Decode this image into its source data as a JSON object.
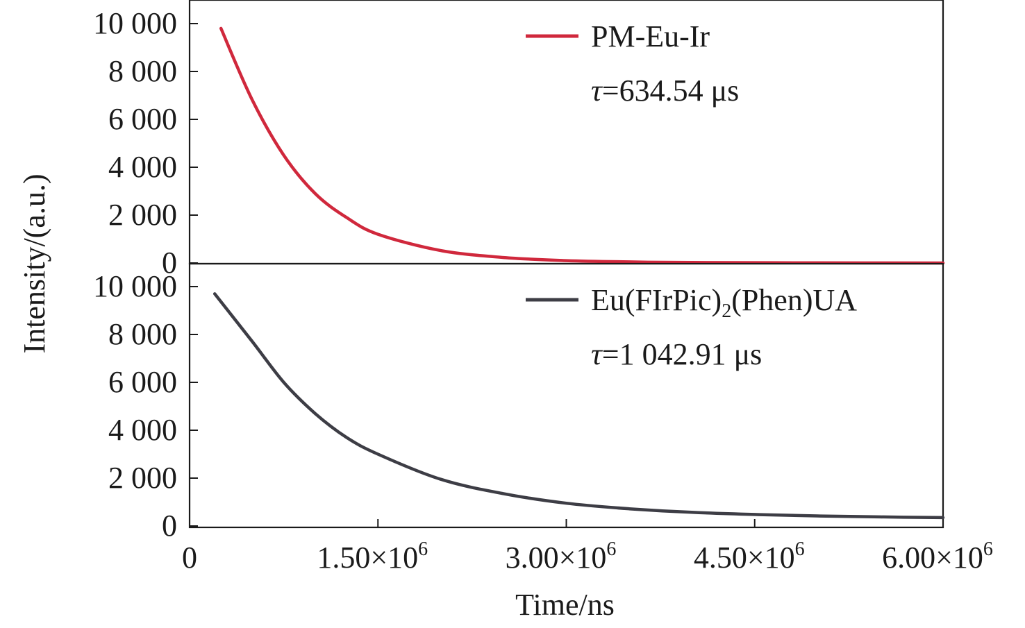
{
  "chart_data": {
    "type": "line",
    "layout": "stacked-panels-shared-x",
    "x": {
      "label": "Time/ns",
      "range": [
        0,
        6000000
      ],
      "ticks": [
        0,
        1500000,
        3000000,
        4500000,
        6000000
      ],
      "tick_labels": [
        {
          "base": "0",
          "exp": ""
        },
        {
          "base": "1.50×10",
          "exp": "6"
        },
        {
          "base": "3.00×10",
          "exp": "6"
        },
        {
          "base": "4.50×10",
          "exp": "6"
        },
        {
          "base": "6.00×10",
          "exp": "6"
        }
      ]
    },
    "ylabel": "Intensity/(a.u.)",
    "panels": [
      {
        "name": "top-panel",
        "ylim": [
          0,
          10800
        ],
        "yticks": [
          0,
          2000,
          4000,
          6000,
          8000,
          10000
        ],
        "ytick_labels": [
          "0",
          "2 000",
          "4 000",
          "6 000",
          "8 000",
          "10 000"
        ],
        "series": {
          "name": "PM-Eu-Ir",
          "color": "#d0283c",
          "points": [
            [
              250000,
              9800
            ],
            [
              500000,
              6800
            ],
            [
              750000,
              4500
            ],
            [
              1000000,
              2900
            ],
            [
              1250000,
              1900
            ],
            [
              1500000,
              1200
            ],
            [
              2000000,
              520
            ],
            [
              2500000,
              230
            ],
            [
              3000000,
              100
            ],
            [
              3500000,
              45
            ],
            [
              4000000,
              20
            ],
            [
              5000000,
              5
            ],
            [
              6000000,
              0
            ]
          ]
        },
        "legend": {
          "label_parts": [
            {
              "text": "PM-Eu-Ir"
            }
          ],
          "tau_symbol": "τ",
          "tau_value": "=634.54 μs"
        }
      },
      {
        "name": "bottom-panel",
        "ylim": [
          0,
          10800
        ],
        "yticks": [
          0,
          2000,
          4000,
          6000,
          8000,
          10000
        ],
        "ytick_labels": [
          "0",
          "2 000",
          "4 000",
          "6 000",
          "8 000",
          "10 000"
        ],
        "series": {
          "name": "Eu(FIrPic)2(Phen)UA",
          "color": "#3d3d45",
          "points": [
            [
              200000,
              9700
            ],
            [
              500000,
              7700
            ],
            [
              750000,
              6000
            ],
            [
              1000000,
              4700
            ],
            [
              1250000,
              3700
            ],
            [
              1500000,
              3000
            ],
            [
              2000000,
              1950
            ],
            [
              2500000,
              1350
            ],
            [
              3000000,
              950
            ],
            [
              3500000,
              720
            ],
            [
              4000000,
              570
            ],
            [
              4500000,
              480
            ],
            [
              5000000,
              420
            ],
            [
              5500000,
              380
            ],
            [
              6000000,
              350
            ]
          ]
        },
        "legend": {
          "label_parts": [
            {
              "text": "Eu(FIrPic)"
            },
            {
              "text": "2",
              "sub": true
            },
            {
              "text": "(Phen)UA"
            }
          ],
          "tau_symbol": "τ",
          "tau_value": "=1 042.91 μs"
        }
      }
    ]
  }
}
